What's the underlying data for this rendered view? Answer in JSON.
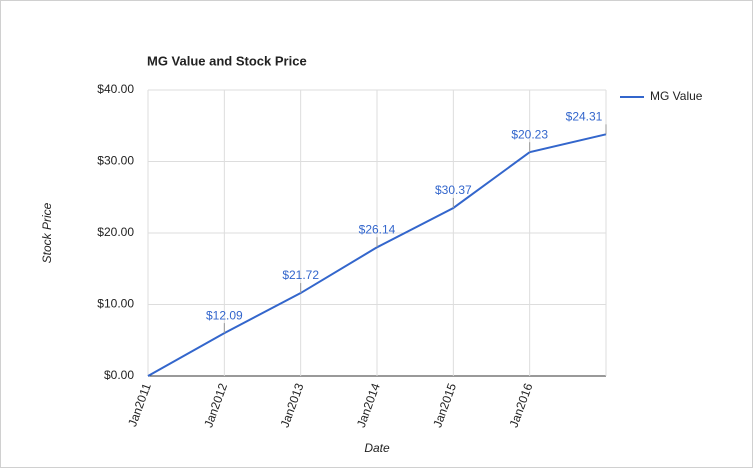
{
  "chart_data": {
    "type": "line",
    "title": "MG Value and Stock Price",
    "x_label": "Date",
    "y_label": "Stock Price",
    "x": [
      "Jan2011",
      "Jan2012",
      "Jan2013",
      "Jan2014",
      "Jan2015",
      "Jan2016",
      null
    ],
    "series": [
      {
        "name": "MG Value",
        "color": "#3366cc",
        "values": [
          0,
          6.0,
          11.6,
          18.0,
          23.5,
          31.3,
          33.8
        ],
        "annotations": [
          null,
          "$12.09",
          "$21.72",
          "$26.14",
          "$30.37",
          "$20.23",
          "$24.31"
        ]
      }
    ],
    "ylim": [
      0,
      40
    ],
    "yticks": [
      {
        "value": 0,
        "label": "$0.00"
      },
      {
        "value": 10,
        "label": "$10.00"
      },
      {
        "value": 20,
        "label": "$20.00"
      },
      {
        "value": 30,
        "label": "$30.00"
      },
      {
        "value": 40,
        "label": "$40.00"
      }
    ],
    "grid": true,
    "legend": "right"
  }
}
